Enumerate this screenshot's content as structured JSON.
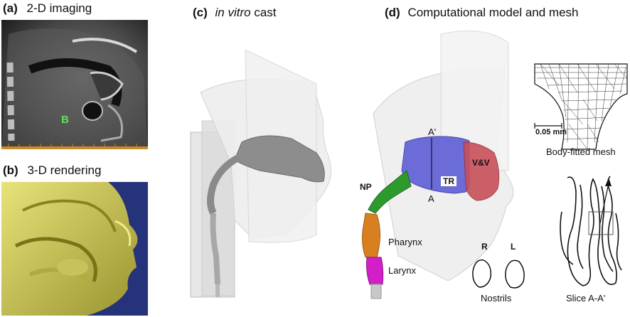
{
  "panels": {
    "a": {
      "letter": "(a)",
      "title": "2-D imaging",
      "marker": "B"
    },
    "b": {
      "letter": "(b)",
      "title": "3-D rendering"
    },
    "c": {
      "letter": "(c)",
      "title_italic": "in vitro",
      "title_rest": "cast"
    },
    "d": {
      "letter": "(d)",
      "title": "Computational model and mesh",
      "regions": {
        "np": "NP",
        "tr": "TR",
        "vv": "V&V",
        "pharynx": "Pharynx",
        "larynx": "Larynx"
      },
      "slice_marks": {
        "top": "A'",
        "bottom": "A"
      },
      "nostrils": {
        "right": "R",
        "left": "L",
        "caption": "Nostrils"
      },
      "mesh": {
        "scale": "0.05 mm",
        "caption": "Body-fitted mesh"
      },
      "slice_caption": "Slice A-A'"
    }
  },
  "colors": {
    "np_green": "#2e9a2e",
    "tr_blue": "#6c6cd8",
    "vv_red": "#c8505a",
    "pharynx_orange": "#d8801f",
    "larynx_magenta": "#d21fc8",
    "rendering_bg": "#25337a",
    "rendering_fg": "#d8d25a"
  }
}
